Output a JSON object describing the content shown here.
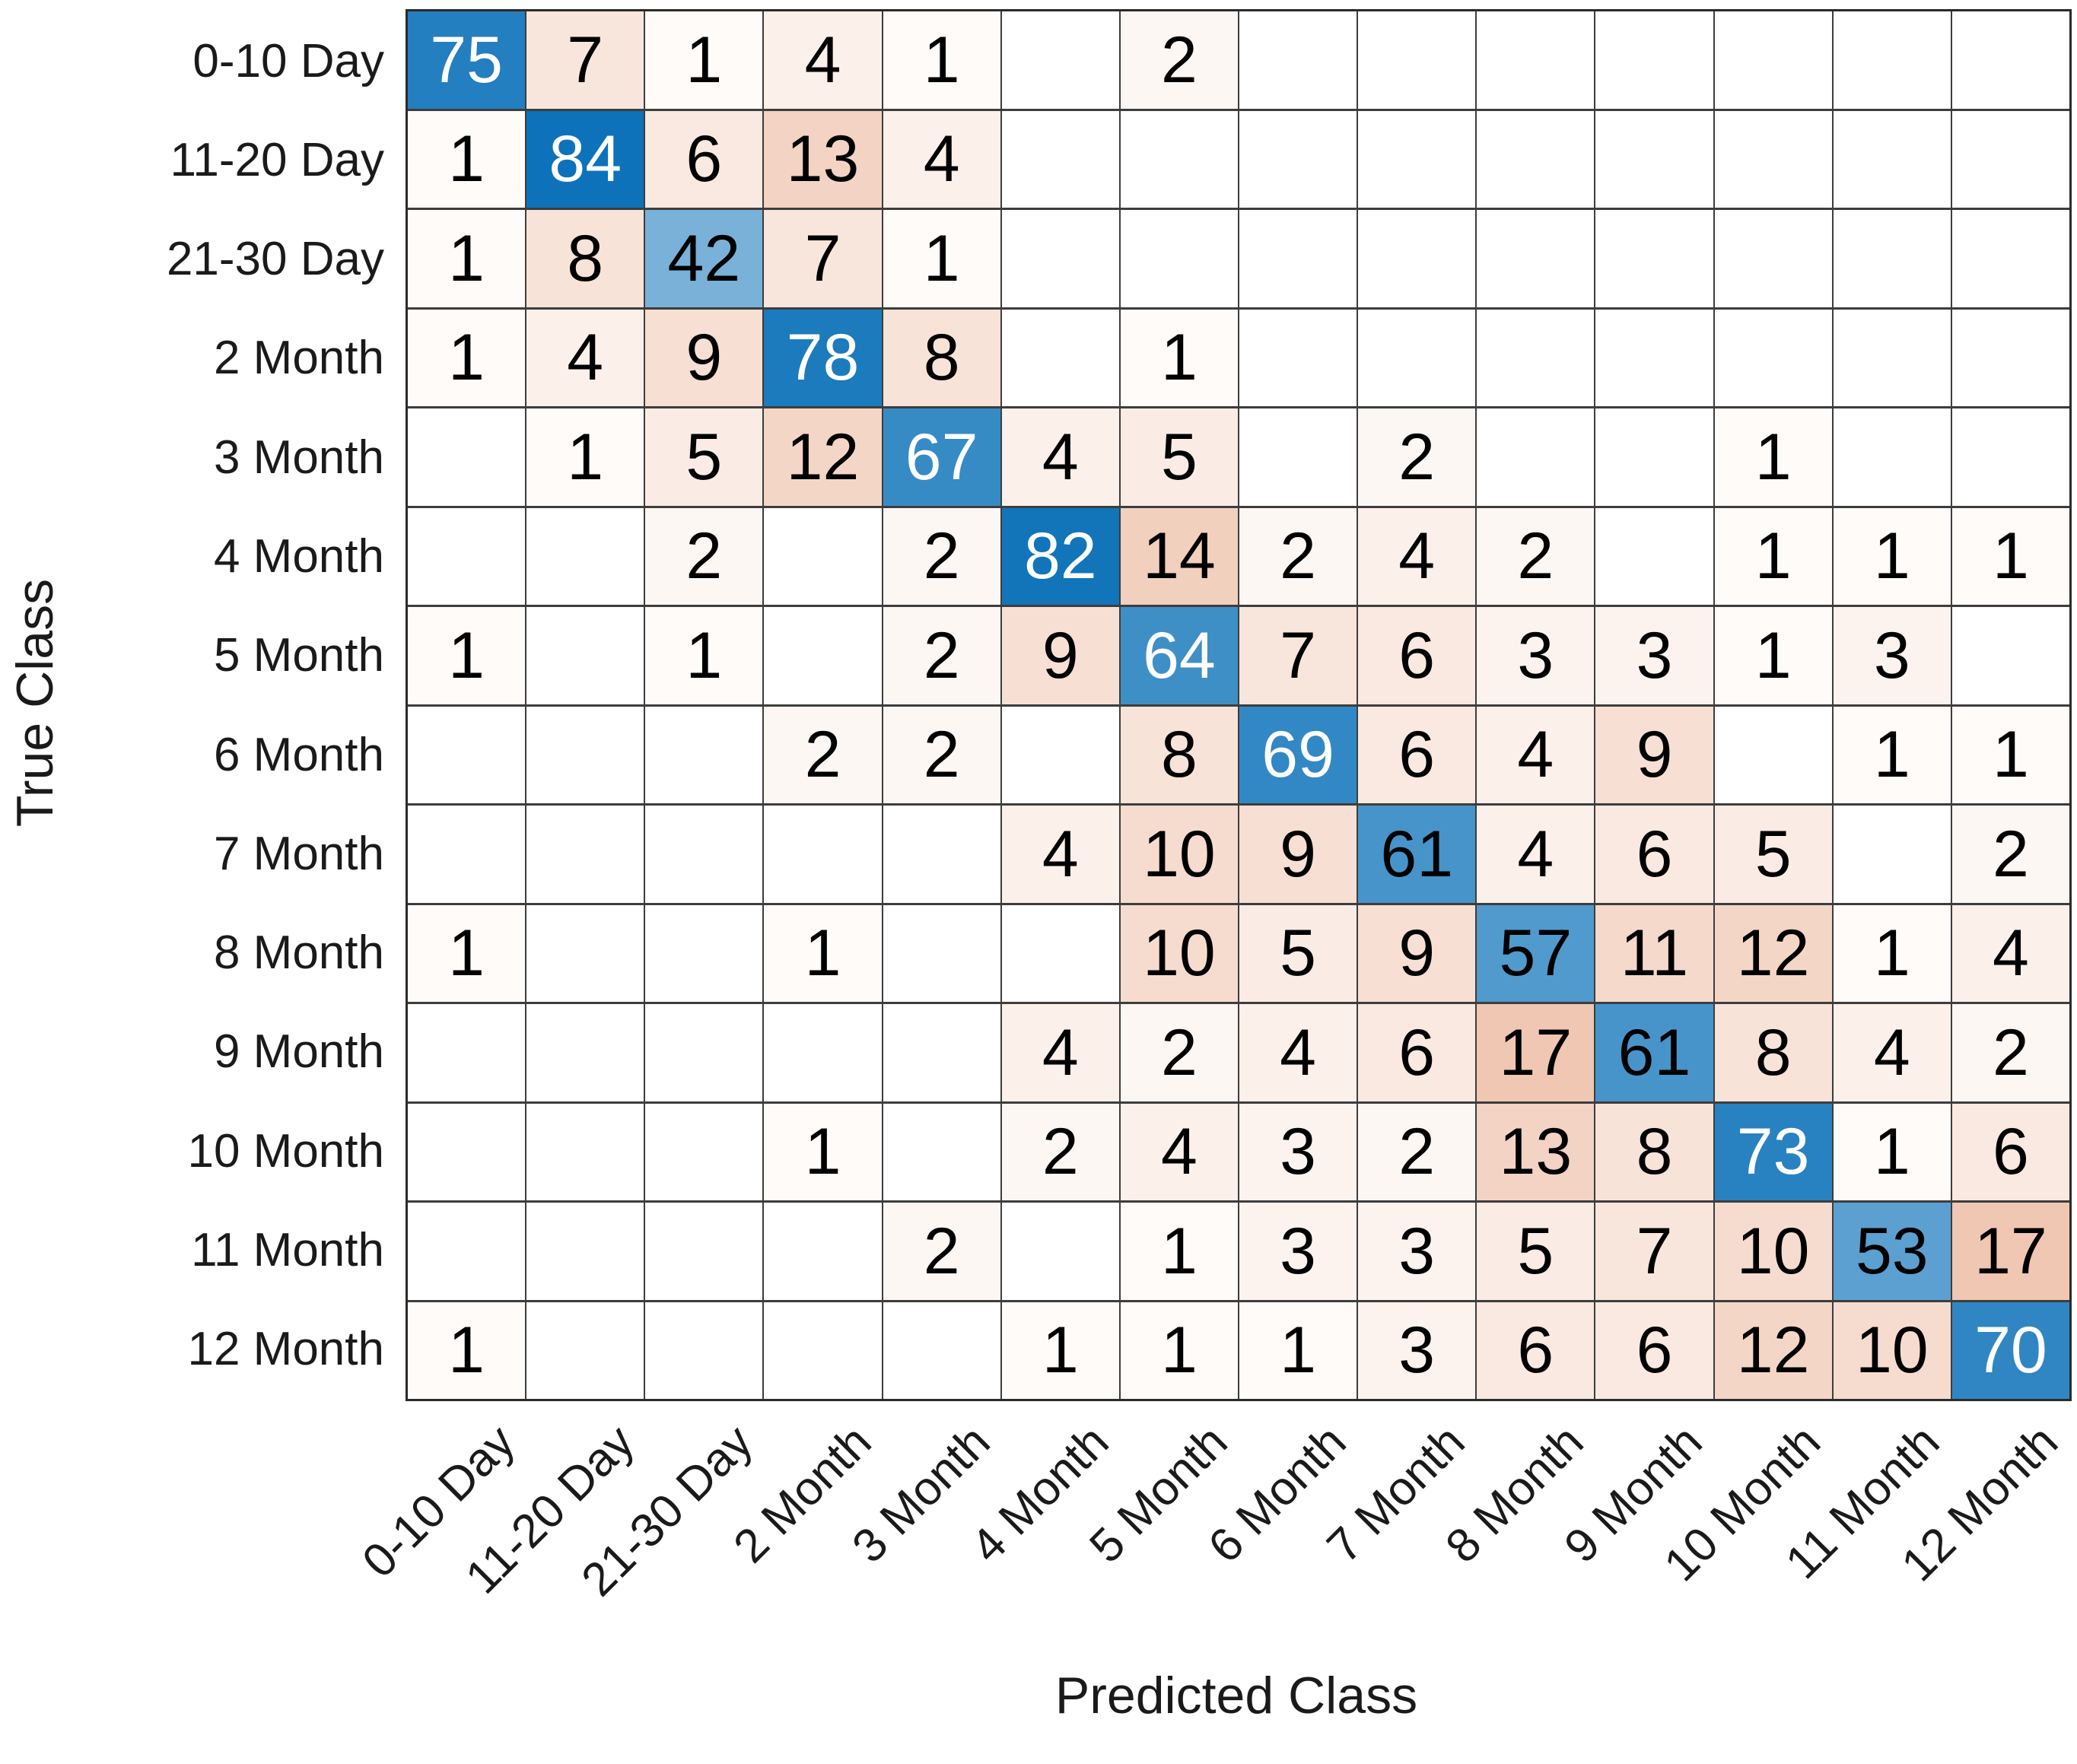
{
  "chart_data": {
    "type": "heatmap",
    "subtype": "confusion-matrix",
    "title": "",
    "xlabel": "Predicted Class",
    "ylabel": "True Class",
    "classes": [
      "0-10 Day",
      "11-20 Day",
      "21-30 Day",
      "2 Month",
      "3 Month",
      "4 Month",
      "5 Month",
      "6 Month",
      "7 Month",
      "8 Month",
      "9 Month",
      "10 Month",
      "11 Month",
      "12 Month"
    ],
    "x_tick_labels": [
      "0-10 Day",
      "11-20 Day",
      "21-30 Day",
      "2 Month",
      "3 Month",
      "4 Month",
      "5 Month",
      "6 Month",
      "7 Month",
      "8 Month",
      "9 Month",
      "10 Month",
      "11 Month",
      "12 Month"
    ],
    "y_tick_labels": [
      "0-10 Day",
      "11-20 Day",
      "21-30 Day",
      "2 Month",
      "3 Month",
      "4 Month",
      "5 Month",
      "6 Month",
      "7 Month",
      "8 Month",
      "9 Month",
      "10 Month",
      "11 Month",
      "12 Month"
    ],
    "matrix": [
      [
        75,
        7,
        1,
        4,
        1,
        0,
        2,
        0,
        0,
        0,
        0,
        0,
        0,
        0
      ],
      [
        1,
        84,
        6,
        13,
        4,
        0,
        0,
        0,
        0,
        0,
        0,
        0,
        0,
        0
      ],
      [
        1,
        8,
        42,
        7,
        1,
        0,
        0,
        0,
        0,
        0,
        0,
        0,
        0,
        0
      ],
      [
        1,
        4,
        9,
        78,
        8,
        0,
        1,
        0,
        0,
        0,
        0,
        0,
        0,
        0
      ],
      [
        0,
        1,
        5,
        12,
        67,
        4,
        5,
        0,
        2,
        0,
        0,
        1,
        0,
        0
      ],
      [
        0,
        0,
        2,
        0,
        2,
        82,
        14,
        2,
        4,
        2,
        0,
        1,
        1,
        1
      ],
      [
        1,
        0,
        1,
        0,
        2,
        9,
        64,
        7,
        6,
        3,
        3,
        1,
        3,
        0
      ],
      [
        0,
        0,
        0,
        2,
        2,
        0,
        8,
        69,
        6,
        4,
        9,
        0,
        1,
        1
      ],
      [
        0,
        0,
        0,
        0,
        0,
        4,
        10,
        9,
        61,
        4,
        6,
        5,
        0,
        2
      ],
      [
        1,
        0,
        0,
        1,
        0,
        0,
        10,
        5,
        9,
        57,
        11,
        12,
        1,
        4
      ],
      [
        0,
        0,
        0,
        0,
        0,
        4,
        2,
        4,
        6,
        17,
        61,
        8,
        4,
        2
      ],
      [
        0,
        0,
        0,
        1,
        0,
        2,
        4,
        3,
        2,
        13,
        8,
        73,
        1,
        6
      ],
      [
        0,
        0,
        0,
        0,
        2,
        0,
        1,
        3,
        3,
        5,
        7,
        10,
        53,
        17
      ],
      [
        1,
        0,
        0,
        0,
        0,
        1,
        1,
        1,
        3,
        6,
        6,
        12,
        10,
        70
      ]
    ],
    "max_value": 84,
    "max_off_diagonal": 17,
    "white_text_threshold": 64,
    "grid_on": true,
    "legend": "none",
    "colors": {
      "diagonal_base": "#0d72b9",
      "off_diagonal_base": "#f0c7b2",
      "empty_cell": "#ffffff",
      "grid_line": "#3d3d3d",
      "grid_border": "#2b2b2b",
      "label_text": "#1a1a1a",
      "cell_text_dark": "#000000",
      "cell_text_light": "#ffffff"
    }
  }
}
